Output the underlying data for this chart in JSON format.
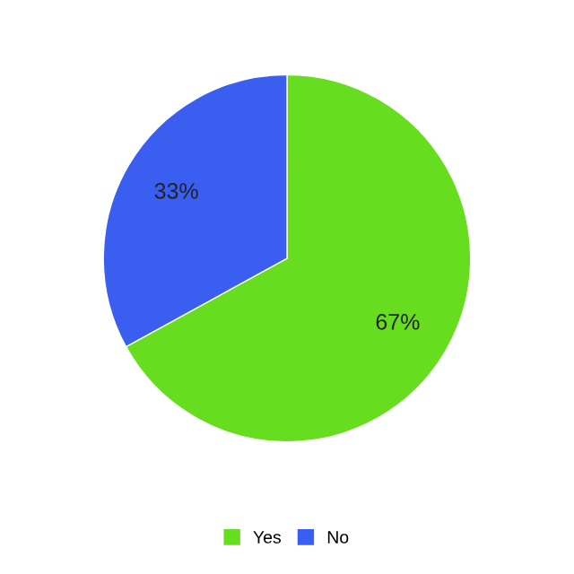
{
  "chart_data": {
    "type": "pie",
    "categories": [
      "Yes",
      "No"
    ],
    "values": [
      67,
      33
    ],
    "colors": [
      "#66dd1e",
      "#3a5ef0"
    ],
    "value_labels": [
      "67%",
      "33%"
    ],
    "legend": "bottom"
  }
}
